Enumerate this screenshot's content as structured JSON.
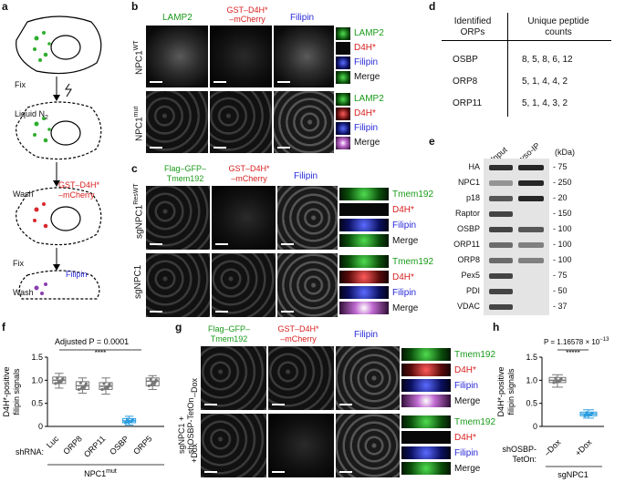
{
  "panels": {
    "a": "a",
    "b": "b",
    "c": "c",
    "d": "d",
    "e": "e",
    "f": "f",
    "g": "g",
    "h": "h"
  },
  "a": {
    "steps": [
      "Fix",
      "Liquid N",
      "Wash",
      "GST–D4H*",
      "–mCherry",
      "Fix",
      "Filipin",
      "Wash"
    ],
    "n2_sub": "2"
  },
  "b": {
    "col1": "LAMP2",
    "col2a": "GST–D4H*",
    "col2b": "–mCherry",
    "col3": "Filipin",
    "row1": "NPC1",
    "row1_sup": "WT",
    "row2": "NPC1",
    "row2_sup": "mut",
    "legend": [
      "LAMP2",
      "D4H*",
      "Filipin",
      "Merge"
    ]
  },
  "c": {
    "col1a": "Flag–GFP–",
    "col1b": "Tmem192",
    "col2a": "GST–D4H*",
    "col2b": "–mCherry",
    "col3": "Filipin",
    "row1": "sgNPC1",
    "row1_sup": "ResWT",
    "row2": "sgNPC1",
    "legend": [
      "Tmem192",
      "D4H*",
      "Filipin",
      "Merge"
    ]
  },
  "d": {
    "header1a": "Identified",
    "header1b": "ORPs",
    "header2": "Unique peptide",
    "header2b": "counts",
    "rows": [
      {
        "orp": "OSBP",
        "counts": "8, 5, 8, 6, 12"
      },
      {
        "orp": "ORP8",
        "counts": "5, 1, 4, 4, 2"
      },
      {
        "orp": "ORP11",
        "counts": "5, 1, 4, 3, 2"
      }
    ]
  },
  "e": {
    "col1": "Input",
    "col2": "Lyso-IP",
    "unit": "(kDa)",
    "rows": [
      {
        "name": "HA",
        "kda": "75"
      },
      {
        "name": "NPC1",
        "kda": "250"
      },
      {
        "name": "p18",
        "kda": "20"
      },
      {
        "name": "Raptor",
        "kda": "150"
      },
      {
        "name": "OSBP",
        "kda": "100"
      },
      {
        "name": "ORP11",
        "kda": "100"
      },
      {
        "name": "ORP8",
        "kda": "100"
      },
      {
        "name": "Pex5",
        "kda": "75"
      },
      {
        "name": "PDI",
        "kda": "50"
      },
      {
        "name": "VDAC",
        "kda": "37"
      }
    ]
  },
  "f": {
    "ylabel1": "D4H*-positive",
    "ylabel2": "filipin signals",
    "annotation": "Adjusted P = 0.0001",
    "stars": "****",
    "shrna_label": "shRNA:",
    "group_label": "NPC1",
    "group_sup": "mut",
    "yticks": [
      "0",
      "0.5",
      "1.0",
      "1.5"
    ]
  },
  "g": {
    "col1a": "Flag–GFP–",
    "col1b": "Tmem192",
    "col2a": "GST–D4H*",
    "col2b": "–mCherry",
    "col3": "Filipin",
    "side1": "sgNPC1 +",
    "side2": "shOSBP-TetOn",
    "row1": "–Dox",
    "row2": "+Dox",
    "legend": [
      "Tmem192",
      "D4H*",
      "Filipin",
      "Merge"
    ]
  },
  "h": {
    "ylabel1": "D4H*-positive",
    "ylabel2": "filipin signals",
    "pval_prefix": "P = 1.16578 × 10",
    "pval_exp": "−13",
    "stars": "*****",
    "xlabel1": "shOSBP-",
    "xlabel2": "TetOn:",
    "group": "sgNPC1",
    "yticks": [
      "0",
      "0.5",
      "1.0",
      "1.5"
    ]
  },
  "chart_data": [
    {
      "type": "box",
      "panel": "f",
      "categories": [
        "Luc",
        "ORP8",
        "ORP11",
        "OSBP",
        "ORP5"
      ],
      "medians": [
        1.0,
        0.88,
        0.87,
        0.12,
        0.98
      ],
      "q1": [
        0.93,
        0.8,
        0.8,
        0.08,
        0.88
      ],
      "q3": [
        1.07,
        0.97,
        0.95,
        0.17,
        1.05
      ],
      "whisker_low": [
        0.83,
        0.72,
        0.7,
        0.03,
        0.8
      ],
      "whisker_high": [
        1.15,
        1.05,
        1.05,
        0.22,
        1.1
      ],
      "colors": [
        "#777777",
        "#777777",
        "#777777",
        "#2a9de0",
        "#777777"
      ],
      "ylim": [
        0,
        1.5
      ],
      "yticks": [
        0,
        0.5,
        1.0,
        1.5
      ]
    },
    {
      "type": "box",
      "panel": "h",
      "categories": [
        "–Dox",
        "+Dox"
      ],
      "medians": [
        1.0,
        0.27
      ],
      "q1": [
        0.95,
        0.23
      ],
      "q3": [
        1.06,
        0.31
      ],
      "whisker_low": [
        0.85,
        0.18
      ],
      "whisker_high": [
        1.12,
        0.36
      ],
      "colors": [
        "#777777",
        "#2a9de0"
      ],
      "ylim": [
        0,
        1.5
      ],
      "yticks": [
        0,
        0.5,
        1.0,
        1.5
      ]
    }
  ]
}
